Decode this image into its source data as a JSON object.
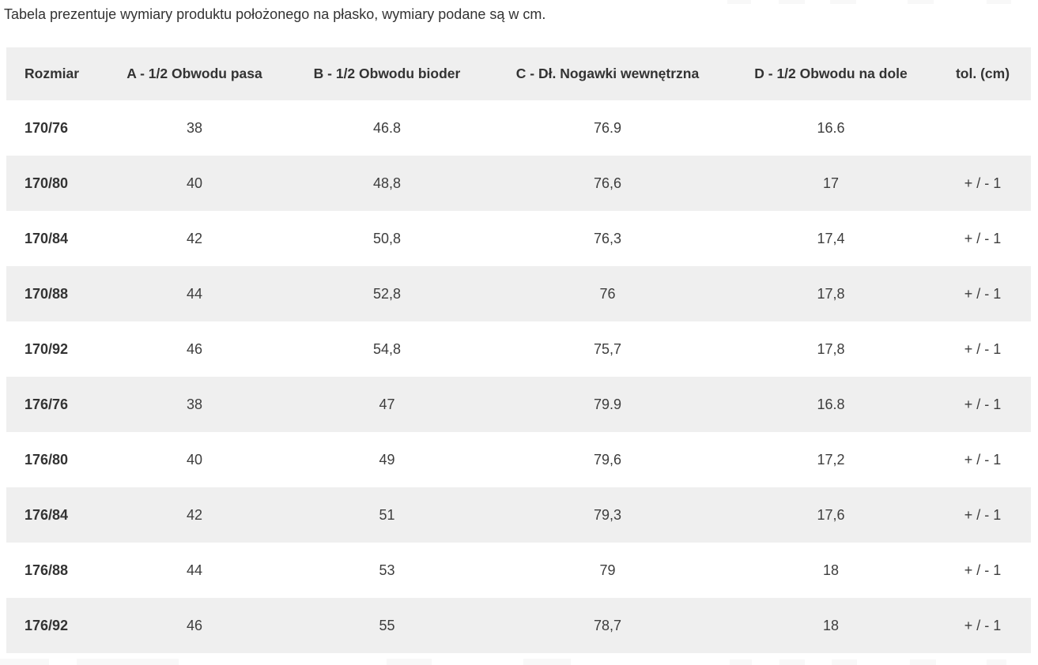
{
  "intro": "Tabela prezentuje wymiary produktu położonego na płasko, wymiary podane są w cm.",
  "table": {
    "headers": [
      "Rozmiar",
      "A - 1/2 Obwodu pasa",
      "B - 1/2 Obwodu bioder",
      "C - Dł. Nogawki wewnętrzna",
      "D - 1/2 Obwodu na dole",
      "tol. (cm)"
    ],
    "rows": [
      [
        "170/76",
        "38",
        "46.8",
        "76.9",
        "16.6",
        ""
      ],
      [
        "170/80",
        "40",
        "48,8",
        "76,6",
        "17",
        "+ / - 1"
      ],
      [
        "170/84",
        "42",
        "50,8",
        "76,3",
        "17,4",
        "+ / - 1"
      ],
      [
        "170/88",
        "44",
        "52,8",
        "76",
        "17,8",
        "+ / - 1"
      ],
      [
        "170/92",
        "46",
        "54,8",
        "75,7",
        "17,8",
        "+ / - 1"
      ],
      [
        "176/76",
        "38",
        "47",
        "79.9",
        "16.8",
        "+ / - 1"
      ],
      [
        "176/80",
        "40",
        "49",
        "79,6",
        "17,2",
        "+ / - 1"
      ],
      [
        "176/84",
        "42",
        "51",
        "79,3",
        "17,6",
        "+ / - 1"
      ],
      [
        "176/88",
        "44",
        "53",
        "79",
        "18",
        "+ / - 1"
      ],
      [
        "176/92",
        "46",
        "55",
        "78,7",
        "18",
        "+ / - 1"
      ]
    ]
  },
  "colors": {
    "stripe": "#efefef",
    "text": "#333333",
    "fragment": "#f8f8f8"
  }
}
